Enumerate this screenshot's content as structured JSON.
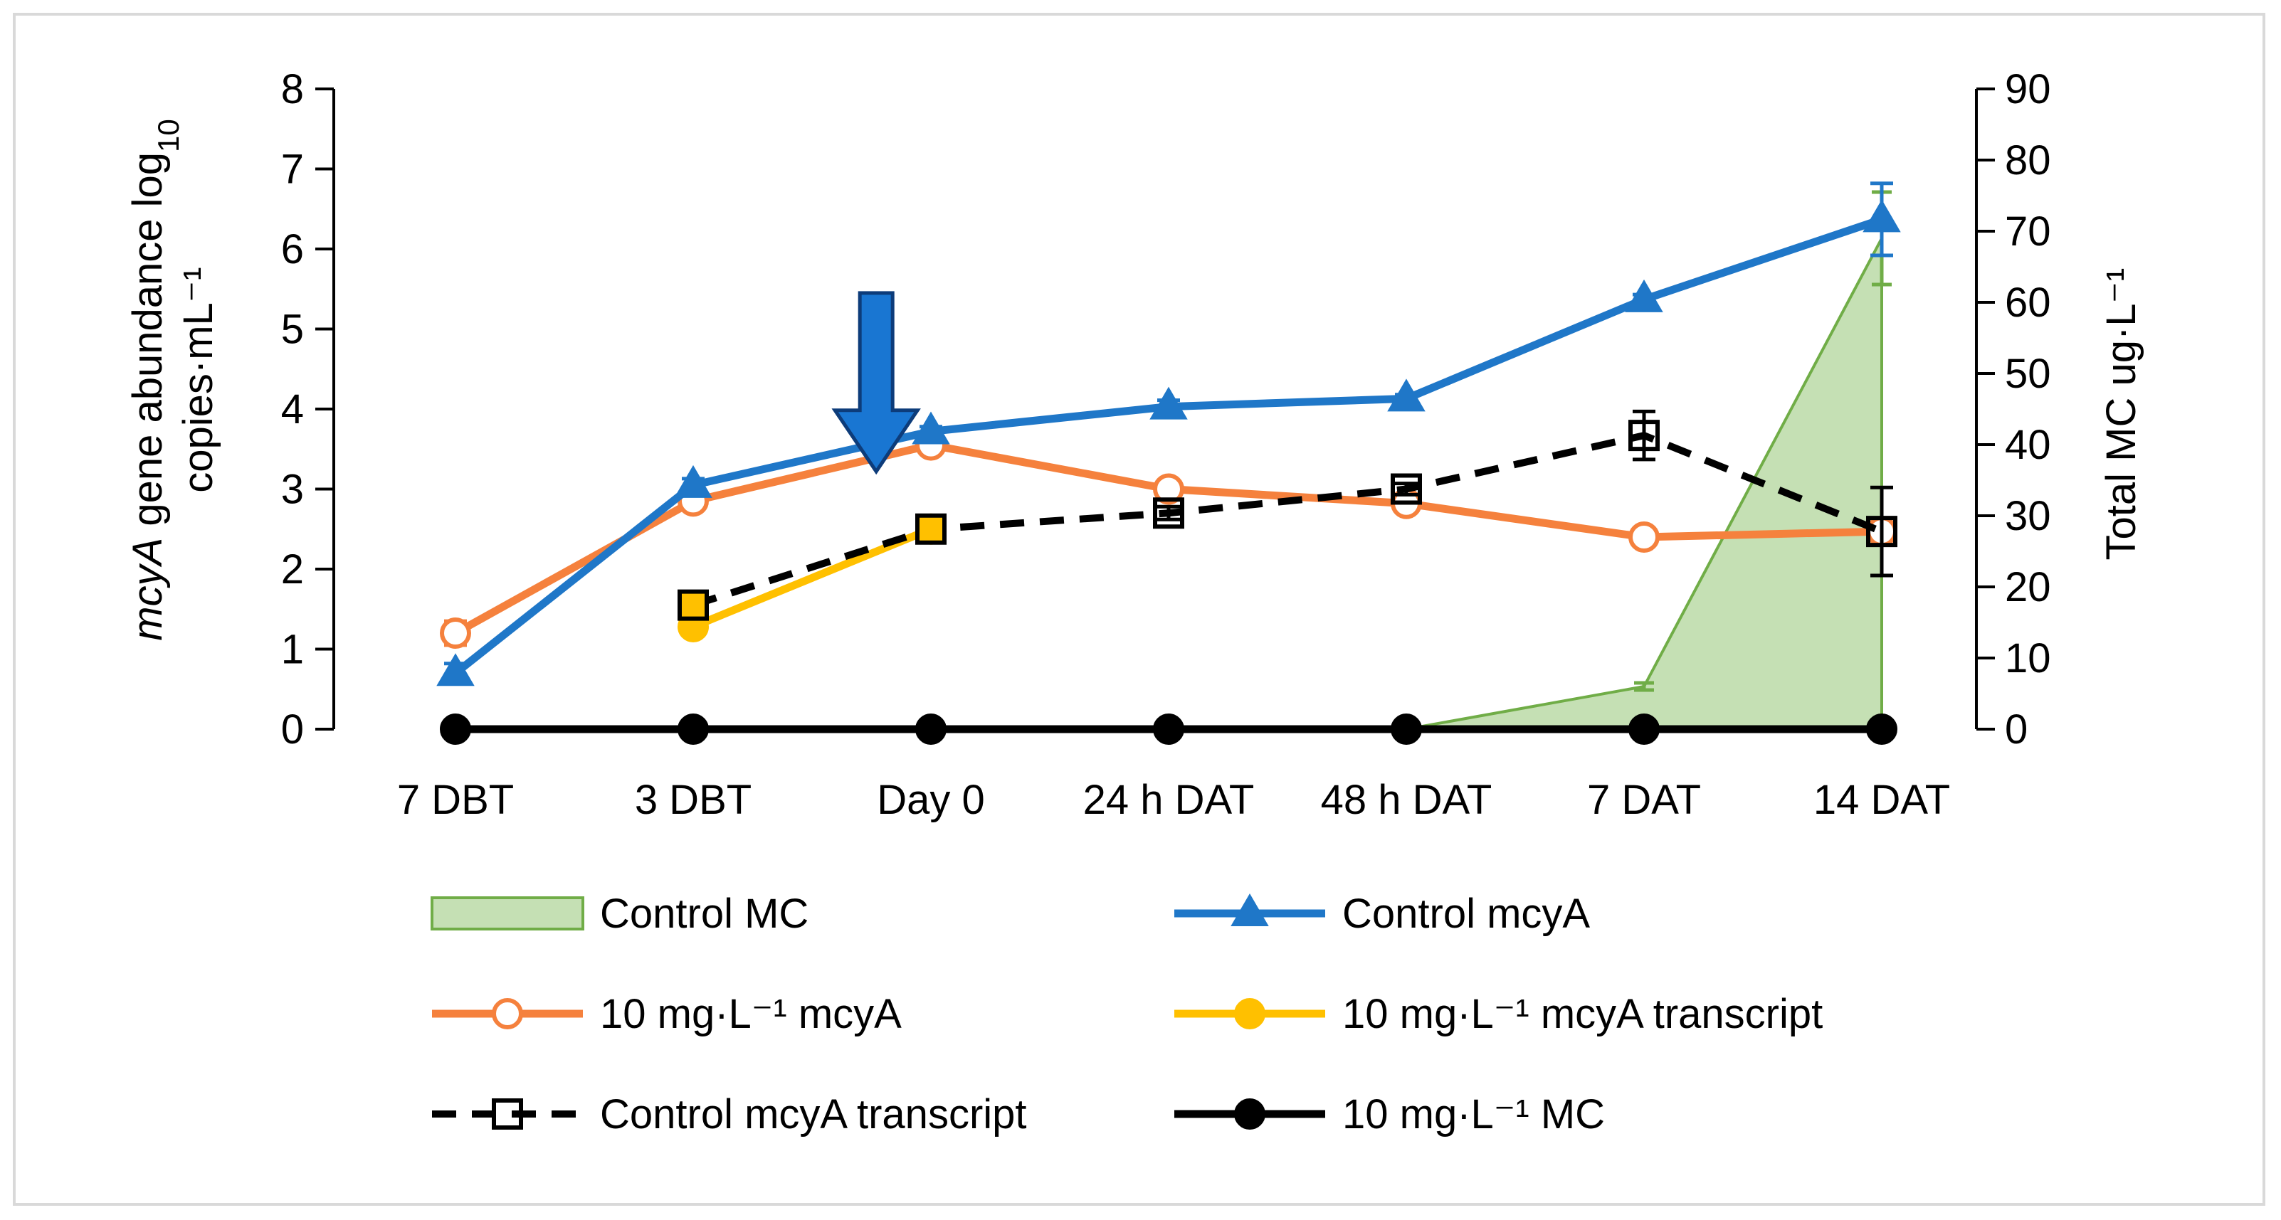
{
  "chart_data": {
    "type": "line",
    "categories": [
      "7 DBT",
      "3 DBT",
      "Day 0",
      "24 h DAT",
      "48 h DAT",
      "7 DAT",
      "14 DAT"
    ],
    "y_left": {
      "label_italic": "mcyA",
      "label_rest": " gene abundance log",
      "label_sub": "10",
      "label_line2": "copies·mL⁻¹",
      "range": [
        0,
        8
      ],
      "ticks": [
        "0",
        "1",
        "2",
        "3",
        "4",
        "5",
        "6",
        "7",
        "8"
      ]
    },
    "y_right": {
      "label": "Total MC ug·L⁻¹",
      "range": [
        0,
        90
      ],
      "ticks": [
        "0",
        "10",
        "20",
        "30",
        "40",
        "50",
        "60",
        "70",
        "80",
        "90"
      ]
    },
    "series": [
      {
        "name": "Control MC",
        "type": "area",
        "axis": "right",
        "color": "#70ad47",
        "fill": "#c5e0b4",
        "x": [
          4,
          5,
          6
        ],
        "values": [
          0,
          6,
          69
        ],
        "errors": [
          0,
          0.5,
          6.5
        ]
      },
      {
        "name": "Control mcyA",
        "type": "line",
        "axis": "left",
        "color": "#1f77c8",
        "marker": "triangle",
        "x": [
          0,
          1,
          2,
          3,
          4,
          5,
          6
        ],
        "values": [
          0.7,
          3.05,
          3.72,
          4.03,
          4.13,
          5.37,
          6.37
        ],
        "errors": [
          0.12,
          0.08,
          0.06,
          0.08,
          0.05,
          0.06,
          0.45
        ]
      },
      {
        "name": "10 mg·L⁻¹ mcyA",
        "type": "line",
        "axis": "left",
        "color": "#f5813d",
        "marker": "circle-open",
        "x": [
          0,
          1,
          2,
          3,
          4,
          5,
          6
        ],
        "values": [
          1.2,
          2.85,
          3.55,
          3.0,
          2.82,
          2.4,
          2.47
        ],
        "errors": [
          0.15,
          0.07,
          0.05,
          0.07,
          0.05,
          0.05,
          0.05
        ]
      },
      {
        "name": "10 mg·L⁻¹ mcyA transcript",
        "type": "line",
        "axis": "left",
        "color": "#ffc000",
        "marker": "circle-filled",
        "x": [
          1,
          2
        ],
        "values": [
          1.28,
          2.5
        ],
        "errors": [
          0.05,
          0.05
        ]
      },
      {
        "name": "Control mcyA transcript",
        "type": "line",
        "axis": "left",
        "color": "#000000",
        "dashed": true,
        "marker": "square-open",
        "x": [
          1,
          2,
          3,
          4,
          5,
          6
        ],
        "values": [
          1.55,
          2.5,
          2.7,
          3.0,
          3.67,
          2.47
        ],
        "errors": [
          0.07,
          0.06,
          0.08,
          0.07,
          0.3,
          0.55
        ]
      },
      {
        "name": "10 mg·L⁻¹ MC",
        "type": "line",
        "axis": "left",
        "color": "#000000",
        "marker": "circle-filled",
        "x": [
          0,
          1,
          2,
          3,
          4,
          5,
          6
        ],
        "values": [
          0,
          0,
          0,
          0,
          0,
          0,
          0
        ],
        "errors": [
          0,
          0,
          0,
          0,
          0,
          0,
          0
        ]
      }
    ],
    "annotation": {
      "type": "arrow-down",
      "color": "#1565c0",
      "x_category_position": 1.77,
      "from_value": 5.45,
      "to_value": 3.22
    },
    "legend": {
      "placement": "bottom",
      "columns": 2,
      "order": [
        "Control MC",
        "Control mcyA",
        "10 mg·L⁻¹ mcyA",
        "10 mg·L⁻¹ mcyA transcript",
        "Control mcyA transcript",
        "10 mg·L⁻¹ MC"
      ]
    },
    "grid": false
  }
}
